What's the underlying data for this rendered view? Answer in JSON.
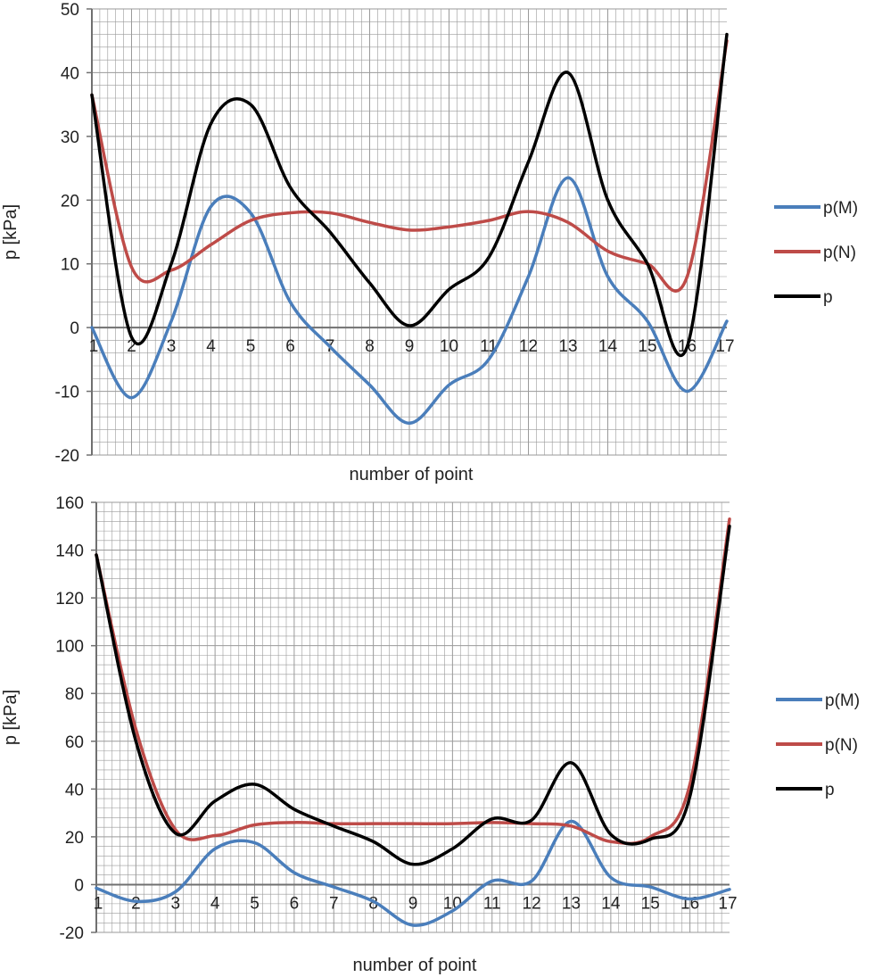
{
  "colors": {
    "p(M)": "#4a7ebb",
    "p(N)": "#be4b48",
    "p": "#000000",
    "grid": "#9a9a9a",
    "axis": "#707070"
  },
  "chart_data": [
    {
      "type": "line",
      "title": "",
      "xlabel": "number of point",
      "ylabel": "p  [kPa]",
      "xlim": [
        1,
        17
      ],
      "ylim": [
        -20,
        50
      ],
      "ytick_step": 10,
      "grid": true,
      "legend_position": "right",
      "categories": [
        "1",
        "2",
        "3",
        "4",
        "5",
        "6",
        "7",
        "8",
        "9",
        "10",
        "11",
        "12",
        "13",
        "14",
        "15",
        "16",
        "17"
      ],
      "x": [
        1,
        2,
        3,
        4,
        5,
        6,
        7,
        8,
        9,
        10,
        11,
        12,
        13,
        14,
        15,
        16,
        17
      ],
      "yticks": [
        "-20",
        "-10",
        "0",
        "10",
        "20",
        "30",
        "40",
        "50"
      ],
      "series": [
        {
          "name": "p(M)",
          "values": [
            0,
            -11,
            1,
            19,
            18,
            4,
            -3,
            -9,
            -15,
            -9,
            -5,
            8,
            23.5,
            8,
            1,
            -10,
            1
          ]
        },
        {
          "name": "p(N)",
          "values": [
            36.5,
            9.5,
            9,
            13,
            16.8,
            18,
            18,
            16.5,
            15.3,
            15.8,
            16.8,
            18.2,
            16.5,
            12,
            10,
            8,
            45
          ]
        },
        {
          "name": "p",
          "values": [
            36.5,
            -1.5,
            10,
            32,
            35,
            22,
            15,
            7,
            0.3,
            6,
            11,
            26,
            40,
            20,
            10,
            -3,
            46
          ]
        }
      ]
    },
    {
      "type": "line",
      "title": "",
      "xlabel": "number of point",
      "ylabel": "p  [kPa]",
      "xlim": [
        1,
        17
      ],
      "ylim": [
        -20,
        160
      ],
      "ytick_step": 20,
      "grid": true,
      "legend_position": "right",
      "categories": [
        "1",
        "2",
        "3",
        "4",
        "5",
        "6",
        "7",
        "8",
        "9",
        "10",
        "11",
        "12",
        "13",
        "14",
        "15",
        "16",
        "17"
      ],
      "x": [
        1,
        2,
        3,
        4,
        5,
        6,
        7,
        8,
        9,
        10,
        11,
        12,
        13,
        14,
        15,
        16,
        17
      ],
      "yticks": [
        "-20",
        "0",
        "20",
        "40",
        "60",
        "80",
        "100",
        "120",
        "140",
        "160"
      ],
      "series": [
        {
          "name": "p(M)",
          "values": [
            -1.5,
            -7,
            -3,
            15,
            17.5,
            5,
            -1,
            -7,
            -17,
            -11,
            1.5,
            1.5,
            26.5,
            3,
            -1,
            -6,
            -2
          ]
        },
        {
          "name": "p(N)",
          "values": [
            138,
            65,
            23,
            20.5,
            25,
            26,
            25.5,
            25.5,
            25.5,
            25.5,
            26,
            25.5,
            24.5,
            18,
            20,
            42,
            153
          ]
        },
        {
          "name": "p",
          "values": [
            138,
            60,
            21.5,
            35,
            42,
            31.5,
            24.5,
            18,
            8.5,
            15,
            27.5,
            27,
            51,
            21,
            19,
            37,
            150
          ]
        }
      ]
    }
  ]
}
